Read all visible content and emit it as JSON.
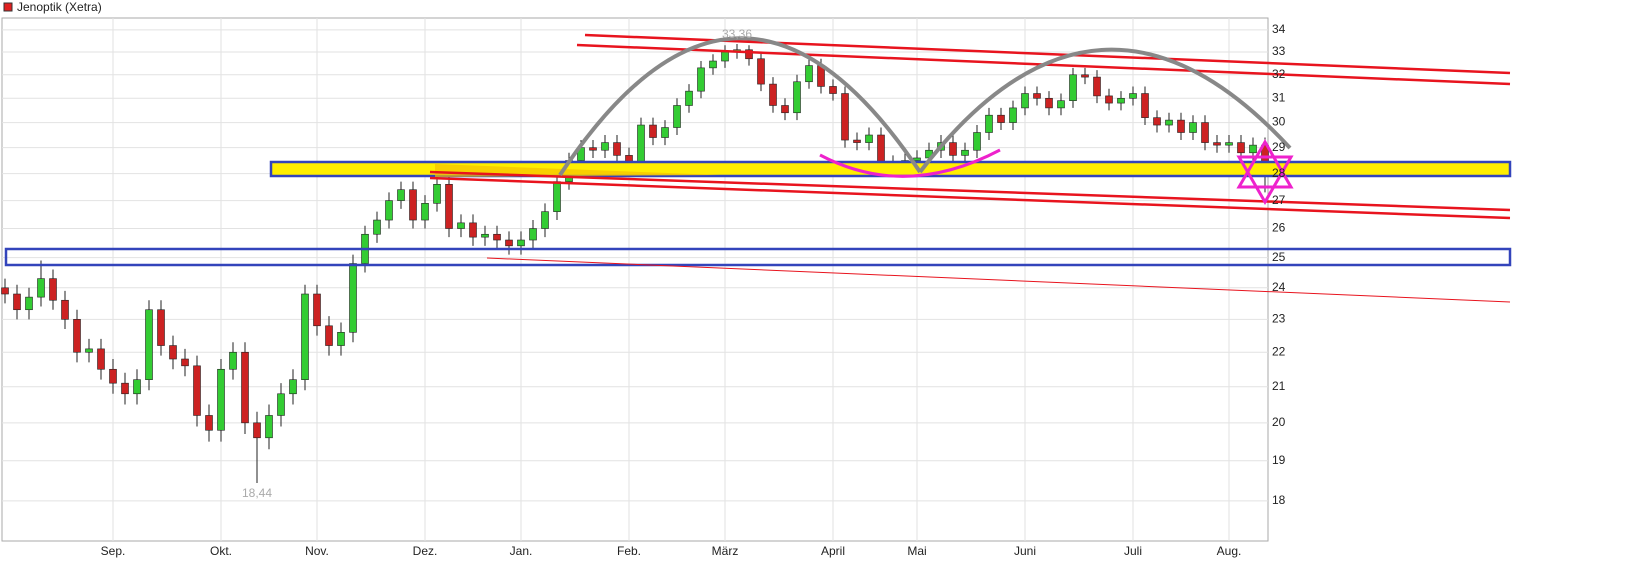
{
  "chart_data": {
    "type": "candlestick",
    "legend": "Jenoptik (Xetra)",
    "legend_color": "#e02020",
    "log_scale": true,
    "grid": true,
    "up_color": "#33cc33",
    "down_color": "#cc2222",
    "ylim": [
      17.05,
      34.55
    ],
    "yticks": [
      18,
      19,
      20,
      21,
      22,
      23,
      24,
      25,
      26,
      27,
      28,
      29,
      30,
      31,
      32,
      33,
      34
    ],
    "categories": [
      null,
      null,
      null,
      null,
      null,
      null,
      null,
      null,
      null,
      "Sep.",
      null,
      null,
      null,
      null,
      null,
      null,
      null,
      null,
      "Okt.",
      null,
      null,
      null,
      null,
      null,
      null,
      null,
      "Nov.",
      null,
      null,
      null,
      null,
      null,
      null,
      null,
      null,
      "Dez.",
      null,
      null,
      null,
      null,
      null,
      null,
      null,
      "Jan.",
      null,
      null,
      null,
      null,
      null,
      null,
      null,
      null,
      "Feb.",
      null,
      null,
      null,
      null,
      null,
      null,
      null,
      "März",
      null,
      null,
      null,
      null,
      null,
      null,
      null,
      null,
      "April",
      null,
      null,
      null,
      null,
      null,
      null,
      "Mai",
      null,
      null,
      null,
      null,
      null,
      null,
      null,
      null,
      "Juni",
      null,
      null,
      null,
      null,
      null,
      null,
      null,
      null,
      "Juli",
      null,
      null,
      null,
      null,
      null,
      null,
      null,
      "Aug.",
      null,
      null,
      null
    ],
    "open": [
      24.0,
      23.8,
      23.3,
      23.7,
      24.3,
      23.6,
      23.0,
      22.0,
      22.1,
      21.5,
      21.1,
      20.8,
      21.2,
      23.3,
      22.2,
      21.8,
      21.6,
      20.2,
      19.8,
      21.5,
      22.0,
      20.0,
      19.6,
      20.2,
      20.8,
      21.2,
      23.8,
      22.8,
      22.2,
      22.6,
      24.8,
      25.8,
      26.3,
      27.0,
      27.4,
      26.3,
      26.9,
      27.6,
      26.0,
      26.2,
      25.7,
      25.8,
      25.6,
      25.4,
      25.6,
      26.0,
      26.6,
      27.7,
      28.5,
      29.0,
      28.9,
      29.2,
      28.7,
      28.4,
      29.9,
      29.4,
      29.8,
      30.7,
      31.3,
      32.3,
      32.6,
      33.0,
      33.1,
      32.7,
      31.6,
      30.7,
      30.4,
      31.7,
      32.4,
      31.5,
      31.2,
      29.3,
      29.2,
      29.5,
      28.3,
      28.4,
      28.5,
      28.6,
      28.9,
      29.2,
      28.7,
      28.9,
      29.6,
      30.3,
      30.0,
      30.6,
      31.2,
      31.0,
      30.6,
      30.9,
      32.0,
      31.9,
      31.1,
      30.8,
      31.0,
      31.2,
      30.2,
      29.9,
      30.1,
      29.6,
      30.0,
      29.2,
      29.1,
      29.2,
      28.8,
      29.1
    ],
    "high": [
      24.3,
      24.1,
      24.0,
      24.9,
      24.6,
      23.9,
      23.3,
      22.4,
      22.4,
      21.8,
      21.4,
      21.5,
      23.6,
      23.6,
      22.5,
      22.1,
      21.9,
      20.5,
      21.8,
      22.3,
      22.3,
      20.3,
      20.5,
      21.1,
      21.5,
      24.1,
      24.1,
      23.1,
      22.9,
      25.1,
      26.1,
      26.6,
      27.3,
      27.7,
      27.7,
      27.2,
      28.1,
      27.9,
      26.5,
      26.5,
      26.1,
      26.1,
      25.9,
      25.9,
      26.3,
      26.9,
      28.0,
      28.8,
      29.3,
      29.3,
      29.5,
      29.5,
      29.0,
      30.2,
      30.2,
      30.1,
      31.0,
      31.6,
      32.6,
      32.9,
      33.3,
      33.36,
      33.3,
      33.0,
      31.9,
      31.0,
      32.0,
      32.7,
      32.7,
      31.8,
      31.5,
      29.6,
      29.8,
      29.8,
      28.7,
      28.8,
      28.9,
      29.2,
      29.5,
      29.5,
      29.2,
      29.9,
      30.6,
      30.6,
      30.9,
      31.5,
      31.5,
      31.3,
      31.2,
      32.3,
      32.3,
      32.2,
      31.4,
      31.3,
      31.5,
      31.5,
      30.5,
      30.4,
      30.4,
      30.3,
      30.3,
      29.5,
      29.5,
      29.5,
      29.4,
      29.4
    ],
    "low": [
      23.5,
      23.0,
      23.0,
      23.4,
      23.3,
      22.7,
      21.7,
      21.7,
      21.2,
      20.8,
      20.5,
      20.5,
      20.9,
      21.9,
      21.5,
      21.3,
      19.9,
      19.5,
      19.5,
      21.2,
      19.7,
      18.44,
      19.3,
      19.9,
      20.5,
      20.9,
      22.5,
      21.9,
      21.9,
      22.3,
      24.5,
      25.5,
      26.0,
      26.7,
      26.0,
      26.0,
      26.6,
      25.7,
      25.7,
      25.4,
      25.4,
      25.3,
      25.1,
      25.1,
      25.3,
      25.7,
      26.3,
      27.4,
      28.2,
      28.6,
      28.6,
      28.4,
      28.1,
      28.1,
      29.1,
      29.1,
      29.5,
      30.4,
      31.0,
      32.0,
      32.3,
      32.7,
      32.4,
      31.3,
      30.4,
      30.1,
      30.1,
      31.4,
      31.2,
      30.9,
      29.0,
      28.9,
      28.9,
      28.0,
      28.0,
      28.1,
      28.2,
      28.3,
      28.6,
      28.4,
      28.4,
      28.6,
      29.3,
      29.7,
      29.7,
      30.3,
      30.7,
      30.3,
      30.3,
      30.6,
      31.6,
      30.8,
      30.5,
      30.5,
      30.7,
      29.9,
      29.6,
      29.6,
      29.3,
      29.3,
      28.9,
      28.8,
      28.8,
      28.5,
      28.5,
      27.3
    ],
    "close": [
      23.8,
      23.3,
      23.7,
      24.3,
      23.6,
      23.0,
      22.0,
      22.1,
      21.5,
      21.1,
      20.8,
      21.2,
      23.3,
      22.2,
      21.8,
      21.6,
      20.2,
      19.8,
      21.5,
      22.0,
      20.0,
      19.6,
      20.2,
      20.8,
      21.2,
      23.8,
      22.8,
      22.2,
      22.6,
      24.8,
      25.8,
      26.3,
      27.0,
      27.4,
      26.3,
      26.9,
      27.6,
      26.0,
      26.2,
      25.7,
      25.8,
      25.6,
      25.4,
      25.6,
      26.0,
      26.6,
      27.7,
      28.5,
      29.0,
      28.9,
      29.2,
      28.7,
      28.4,
      29.9,
      29.4,
      29.8,
      30.7,
      31.3,
      32.3,
      32.6,
      33.0,
      33.1,
      32.7,
      31.6,
      30.7,
      30.4,
      31.7,
      32.4,
      31.5,
      31.2,
      29.3,
      29.2,
      29.5,
      28.3,
      28.4,
      28.5,
      28.6,
      28.9,
      29.2,
      28.7,
      28.9,
      29.6,
      30.3,
      30.0,
      30.6,
      31.2,
      31.0,
      30.6,
      30.9,
      32.0,
      31.9,
      31.1,
      30.8,
      31.0,
      31.2,
      30.2,
      29.9,
      30.1,
      29.6,
      30.0,
      29.2,
      29.1,
      29.2,
      28.8,
      29.1,
      28.3
    ],
    "annotations": [
      {
        "value": 33.36,
        "label": "33,36",
        "of": "high"
      },
      {
        "value": 18.44,
        "label": "18,44",
        "of": "low"
      }
    ]
  }
}
